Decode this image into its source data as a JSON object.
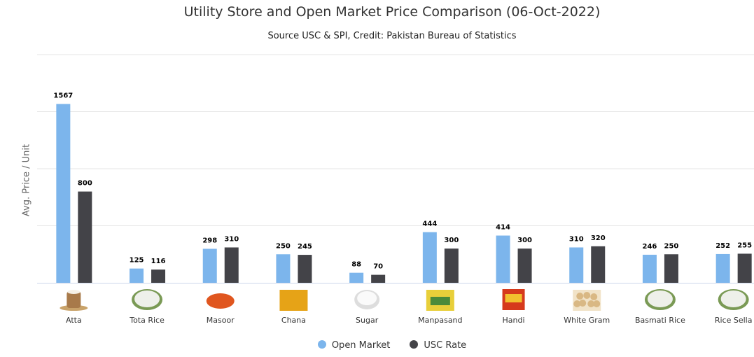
{
  "chart_data": {
    "type": "bar",
    "title": "Utility Store and Open Market Price Comparison (06-Oct-2022)",
    "subtitle": "Source USC & SPI, Credit: Pakistan Bureau of Statistics",
    "xlabel": "",
    "ylabel": "Avg. Price / Unit",
    "ylim": [
      0,
      2000
    ],
    "yticks": [
      0,
      500,
      1000,
      1500,
      2000
    ],
    "grid": true,
    "legend_position": "bottom-center",
    "categories": [
      "Atta",
      "Tota Rice",
      "Masoor",
      "Chana",
      "Sugar",
      "Manpasand",
      "Handi",
      "White Gram",
      "Basmati Rice",
      "Rice Sella"
    ],
    "category_icons": [
      "flour-sack-icon",
      "rice-bowl-icon",
      "lentils-icon",
      "chickpeas-icon",
      "sugar-bowl-icon",
      "rice-pack-icon",
      "handi-box-icon",
      "white-gram-icon",
      "rice-bowl-icon",
      "rice-bowl-icon"
    ],
    "series": [
      {
        "name": "Open Market",
        "color": "#7cb5ec",
        "values": [
          1567,
          125,
          298,
          250,
          88,
          444,
          414,
          310,
          246,
          252
        ]
      },
      {
        "name": "USC Rate",
        "color": "#434348",
        "values": [
          800,
          116,
          310,
          245,
          70,
          300,
          300,
          320,
          250,
          255
        ]
      }
    ]
  }
}
